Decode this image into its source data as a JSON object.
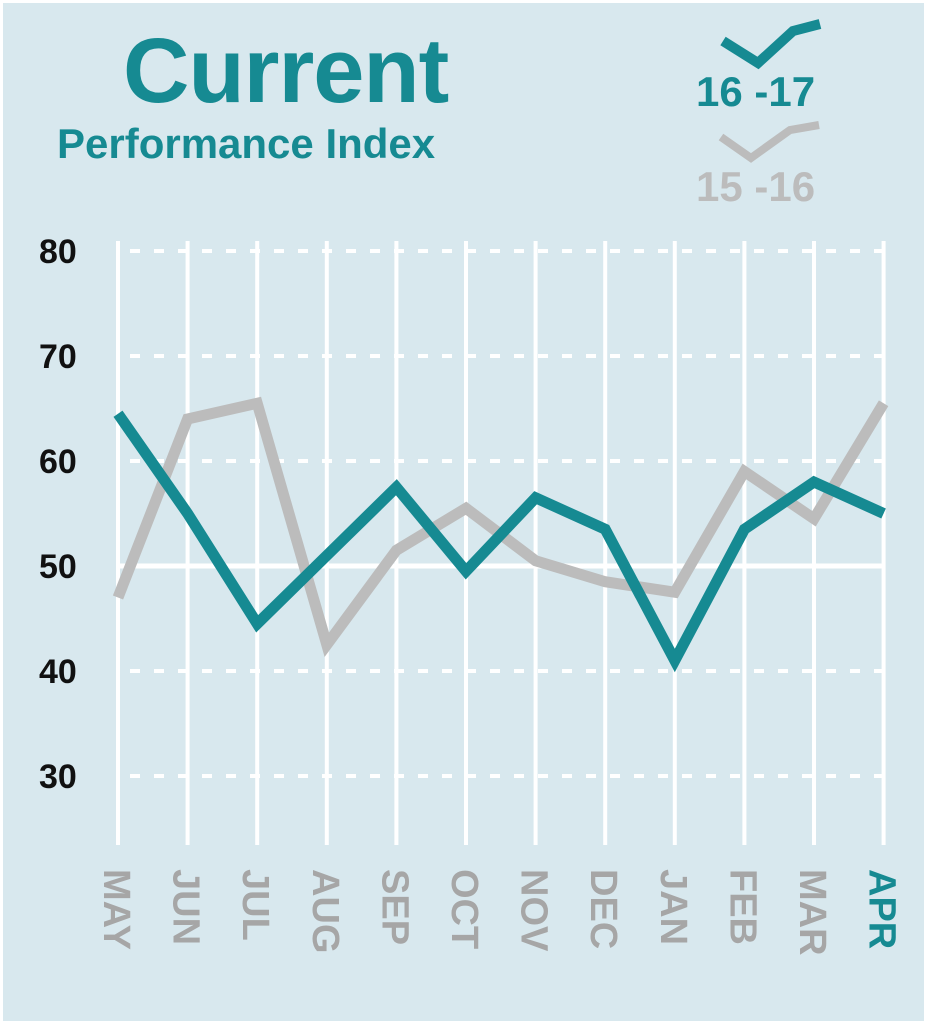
{
  "title": "Current",
  "subtitle": "Performance Index",
  "chart_data": {
    "type": "line",
    "title": "Current",
    "subtitle": "Performance Index",
    "categories": [
      "MAY",
      "JUN",
      "JUL",
      "AUG",
      "SEP",
      "OCT",
      "NOV",
      "DEC",
      "JAN",
      "FEB",
      "MAR",
      "APR"
    ],
    "highlight_category": "APR",
    "y_ticks": [
      80,
      70,
      60,
      50,
      40,
      30
    ],
    "ylim": [
      25,
      80
    ],
    "grid": "dashed horizontal, solid vertical",
    "reference_line": 50,
    "legend_position": "top-right",
    "series": [
      {
        "name": "16 -17",
        "color": "#168a92",
        "values": [
          64.5,
          55,
          44.5,
          51,
          57.5,
          49.5,
          56.5,
          53.5,
          41,
          53.5,
          58,
          55
        ]
      },
      {
        "name": "15 -16",
        "color": "#bcbcbc",
        "values": [
          47,
          64,
          65.5,
          42.5,
          51.5,
          55.5,
          50.5,
          48.5,
          47.5,
          59,
          54.5,
          65.5
        ]
      }
    ]
  }
}
